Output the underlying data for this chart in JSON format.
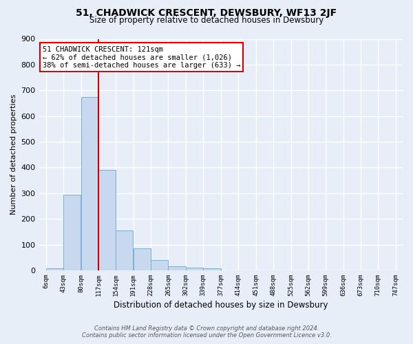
{
  "title": "51, CHADWICK CRESCENT, DEWSBURY, WF13 2JF",
  "subtitle": "Size of property relative to detached houses in Dewsbury",
  "xlabel": "Distribution of detached houses by size in Dewsbury",
  "ylabel": "Number of detached properties",
  "bar_values": [
    8,
    295,
    675,
    390,
    155,
    85,
    40,
    15,
    10,
    8,
    0,
    0,
    0,
    0,
    0,
    0,
    0,
    0,
    0,
    0
  ],
  "tick_labels": [
    "6sqm",
    "43sqm",
    "80sqm",
    "117sqm",
    "154sqm",
    "191sqm",
    "228sqm",
    "265sqm",
    "302sqm",
    "339sqm",
    "377sqm",
    "414sqm",
    "451sqm",
    "488sqm",
    "525sqm",
    "562sqm",
    "599sqm",
    "636sqm",
    "673sqm",
    "710sqm",
    "747sqm"
  ],
  "bar_color": "#c8d8ee",
  "bar_edge_color": "#7aaed4",
  "vline_color": "#cc0000",
  "annotation_title": "51 CHADWICK CRESCENT: 121sqm",
  "annotation_line1": "← 62% of detached houses are smaller (1,026)",
  "annotation_line2": "38% of semi-detached houses are larger (633) →",
  "annotation_box_color": "#ffffff",
  "annotation_box_edge": "#cc0000",
  "ylim": [
    0,
    900
  ],
  "yticks": [
    0,
    100,
    200,
    300,
    400,
    500,
    600,
    700,
    800,
    900
  ],
  "sqm_edges": [
    6,
    43,
    80,
    117,
    154,
    191,
    228,
    265,
    302,
    339,
    377,
    414,
    451,
    488,
    525,
    562,
    599,
    636,
    673,
    710,
    747
  ],
  "bg_color": "#e8eef8",
  "grid_color": "#ffffff",
  "footer1": "Contains HM Land Registry data © Crown copyright and database right 2024.",
  "footer2": "Contains public sector information licensed under the Open Government Licence v3.0."
}
